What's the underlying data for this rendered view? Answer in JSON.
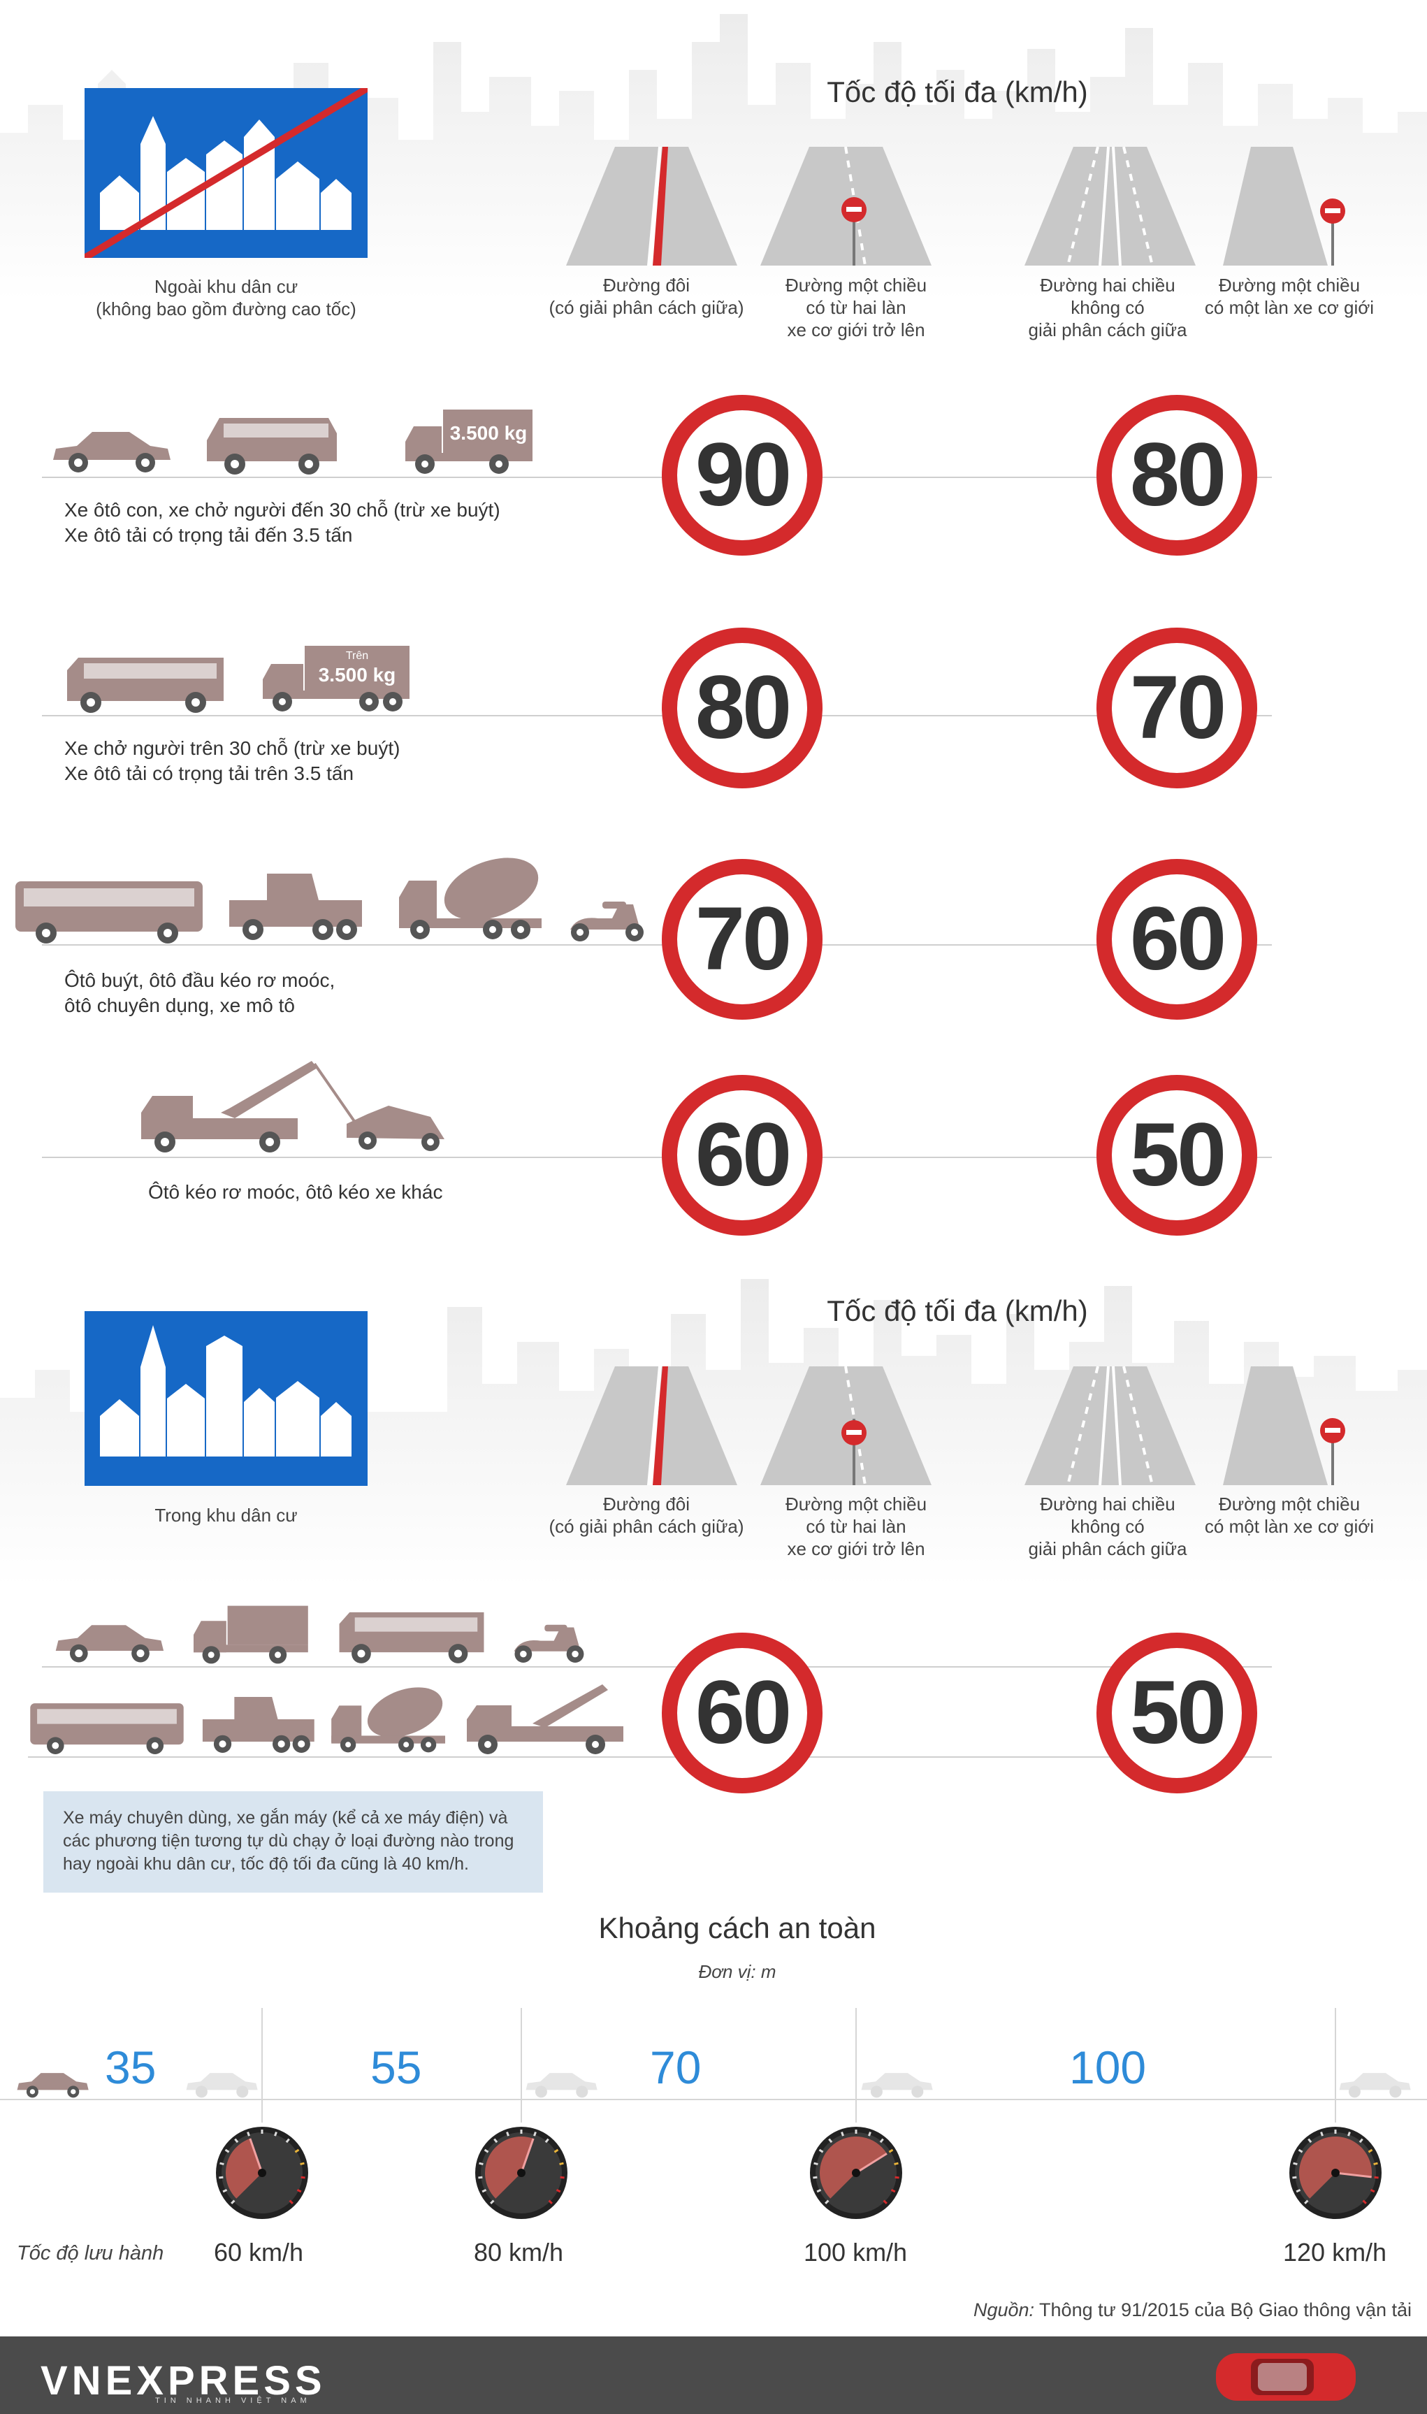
{
  "section1": {
    "sign_label": "Ngoài khu dân cư",
    "sign_sub": "(không bao gồm đường cao tốc)",
    "title": "Tốc độ tối đa (km/h)",
    "roads": [
      {
        "line1": "Đường đôi",
        "line2": "(có giải phân cách giữa)",
        "line3": ""
      },
      {
        "line1": "Đường một chiều",
        "line2": "có từ hai làn",
        "line3": "xe cơ giới trở lên"
      },
      {
        "line1": "Đường hai chiều",
        "line2": "không có",
        "line3": "giải phân cách giữa"
      },
      {
        "line1": "Đường một chiều",
        "line2": "có một làn xe cơ giới",
        "line3": ""
      }
    ],
    "rows": [
      {
        "line1": "Xe ôtô con, xe chở người đến 30 chỗ (trừ xe buýt)",
        "line2": "Xe ôtô tải có trọng tải đến 3.5 tấn",
        "speed_a": "90",
        "speed_b": "80",
        "truck_label": "3.500 kg"
      },
      {
        "line1": "Xe chở người trên 30 chỗ (trừ xe buýt)",
        "line2": "Xe ôtô tải có trọng tải trên 3.5 tấn",
        "speed_a": "80",
        "speed_b": "70",
        "truck_label": "3.500 kg",
        "truck_top": "Trên"
      },
      {
        "line1": "Ôtô buýt, ôtô đầu kéo rơ moóc,",
        "line2": "ôtô chuyên dụng, xe mô tô",
        "speed_a": "70",
        "speed_b": "60"
      },
      {
        "line1": "Ôtô kéo rơ moóc, ôtô kéo xe khác",
        "line2": "",
        "speed_a": "60",
        "speed_b": "50"
      }
    ]
  },
  "section2": {
    "sign_label": "Trong khu dân cư",
    "title": "Tốc độ tối đa (km/h)",
    "speed_a": "60",
    "speed_b": "50",
    "note": "Xe máy chuyên dùng, xe gắn máy (kể cả xe máy điện) và các phương tiện tương tự dù chạy ở loại đường nào trong hay ngoài khu dân cư, tốc độ tối đa cũng là 40 km/h."
  },
  "safety": {
    "title": "Khoảng cách an toàn",
    "unit": "Đơn vị: m",
    "row_label": "Tốc độ lưu hành",
    "distances": [
      "35",
      "55",
      "70",
      "100"
    ],
    "speeds": [
      "60 km/h",
      "80 km/h",
      "100 km/h",
      "120 km/h"
    ]
  },
  "source": {
    "label": "Nguồn:",
    "text": "Thông tư 91/2015 của Bộ Giao thông vận tải"
  },
  "brand": {
    "logo": "VNEXPRESS",
    "tagline": "TIN NHANH VIỆT NAM"
  },
  "colors": {
    "sign_blue": "#1668c6",
    "speed_red": "#d42a2c",
    "vehicle": "#a58c89",
    "distance_blue": "#2e8bd8"
  }
}
